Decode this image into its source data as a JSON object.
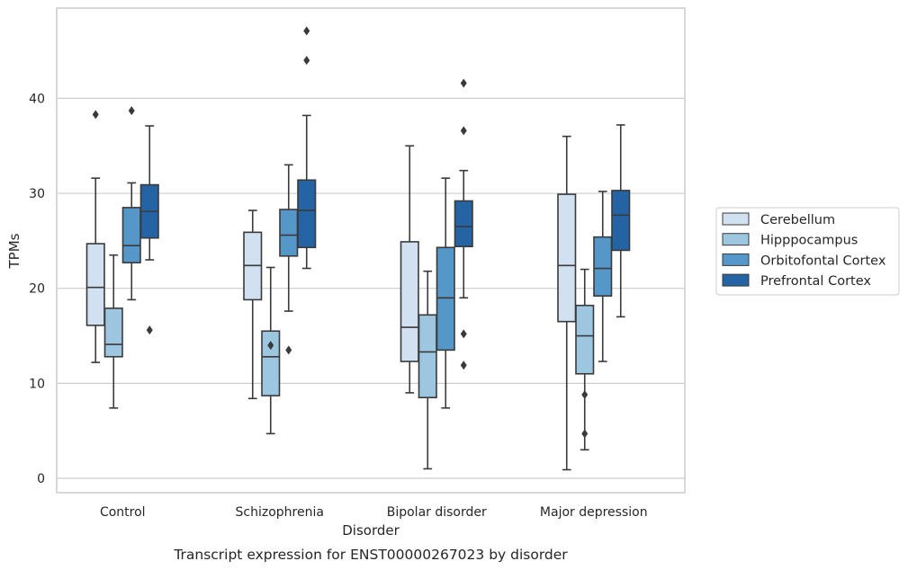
{
  "chart_data": {
    "type": "box",
    "xlabel": "Disorder",
    "ylabel": "TPMs",
    "caption": "Transcript expression for ENST00000267023 by disorder",
    "ylim": [
      -1.5,
      49.5
    ],
    "yticks": [
      0,
      10,
      20,
      30,
      40
    ],
    "grid": "horizontal",
    "legend_position": "right",
    "categories": [
      "Control",
      "Schizophrenia",
      "Bipolar disorder",
      "Major depression"
    ],
    "series": [
      {
        "name": "Cerebellum",
        "color": "#d2e1f1",
        "boxes": [
          {
            "whisker_low": 12.2,
            "q1": 16.1,
            "median": 20.1,
            "q3": 24.7,
            "whisker_high": 31.6,
            "outliers": [
              38.3
            ]
          },
          {
            "whisker_low": 8.4,
            "q1": 18.8,
            "median": 22.4,
            "q3": 25.9,
            "whisker_high": 28.2,
            "outliers": []
          },
          {
            "whisker_low": 9.0,
            "q1": 12.3,
            "median": 15.9,
            "q3": 24.9,
            "whisker_high": 35.0,
            "outliers": []
          },
          {
            "whisker_low": 0.9,
            "q1": 16.5,
            "median": 22.4,
            "q3": 29.9,
            "whisker_high": 36.0,
            "outliers": []
          }
        ]
      },
      {
        "name": "Hipppocampus",
        "color": "#9dc6e0",
        "boxes": [
          {
            "whisker_low": 7.4,
            "q1": 12.8,
            "median": 14.1,
            "q3": 17.9,
            "whisker_high": 23.5,
            "outliers": []
          },
          {
            "whisker_low": 4.7,
            "q1": 8.7,
            "median": 12.8,
            "q3": 15.5,
            "whisker_high": 22.2,
            "outliers": [
              14.0
            ]
          },
          {
            "whisker_low": 1.0,
            "q1": 8.5,
            "median": 13.3,
            "q3": 17.2,
            "whisker_high": 21.8,
            "outliers": []
          },
          {
            "whisker_low": 3.0,
            "q1": 11.0,
            "median": 15.0,
            "q3": 18.2,
            "whisker_high": 22.0,
            "outliers": [
              8.8,
              4.7
            ]
          }
        ]
      },
      {
        "name": "Orbitofontal Cortex",
        "color": "#5497c8",
        "boxes": [
          {
            "whisker_low": 18.8,
            "q1": 22.7,
            "median": 24.5,
            "q3": 28.5,
            "whisker_high": 31.1,
            "outliers": [
              38.7
            ]
          },
          {
            "whisker_low": 17.6,
            "q1": 23.4,
            "median": 25.6,
            "q3": 28.3,
            "whisker_high": 33.0,
            "outliers": [
              13.5
            ]
          },
          {
            "whisker_low": 7.4,
            "q1": 13.5,
            "median": 19.0,
            "q3": 24.3,
            "whisker_high": 31.6,
            "outliers": []
          },
          {
            "whisker_low": 12.3,
            "q1": 19.2,
            "median": 22.1,
            "q3": 25.4,
            "whisker_high": 30.2,
            "outliers": []
          }
        ]
      },
      {
        "name": "Prefrontal Cortex",
        "color": "#2464a5",
        "boxes": [
          {
            "whisker_low": 23.0,
            "q1": 25.3,
            "median": 28.1,
            "q3": 30.9,
            "whisker_high": 37.1,
            "outliers": [
              15.6
            ]
          },
          {
            "whisker_low": 22.1,
            "q1": 24.3,
            "median": 28.2,
            "q3": 31.4,
            "whisker_high": 38.2,
            "outliers": [
              47.1,
              44.0
            ]
          },
          {
            "whisker_low": 19.0,
            "q1": 24.4,
            "median": 26.5,
            "q3": 29.2,
            "whisker_high": 32.4,
            "outliers": [
              41.6,
              36.6,
              15.2,
              11.9
            ]
          },
          {
            "whisker_low": 17.0,
            "q1": 24.0,
            "median": 27.7,
            "q3": 30.3,
            "whisker_high": 37.2,
            "outliers": []
          }
        ]
      }
    ]
  }
}
